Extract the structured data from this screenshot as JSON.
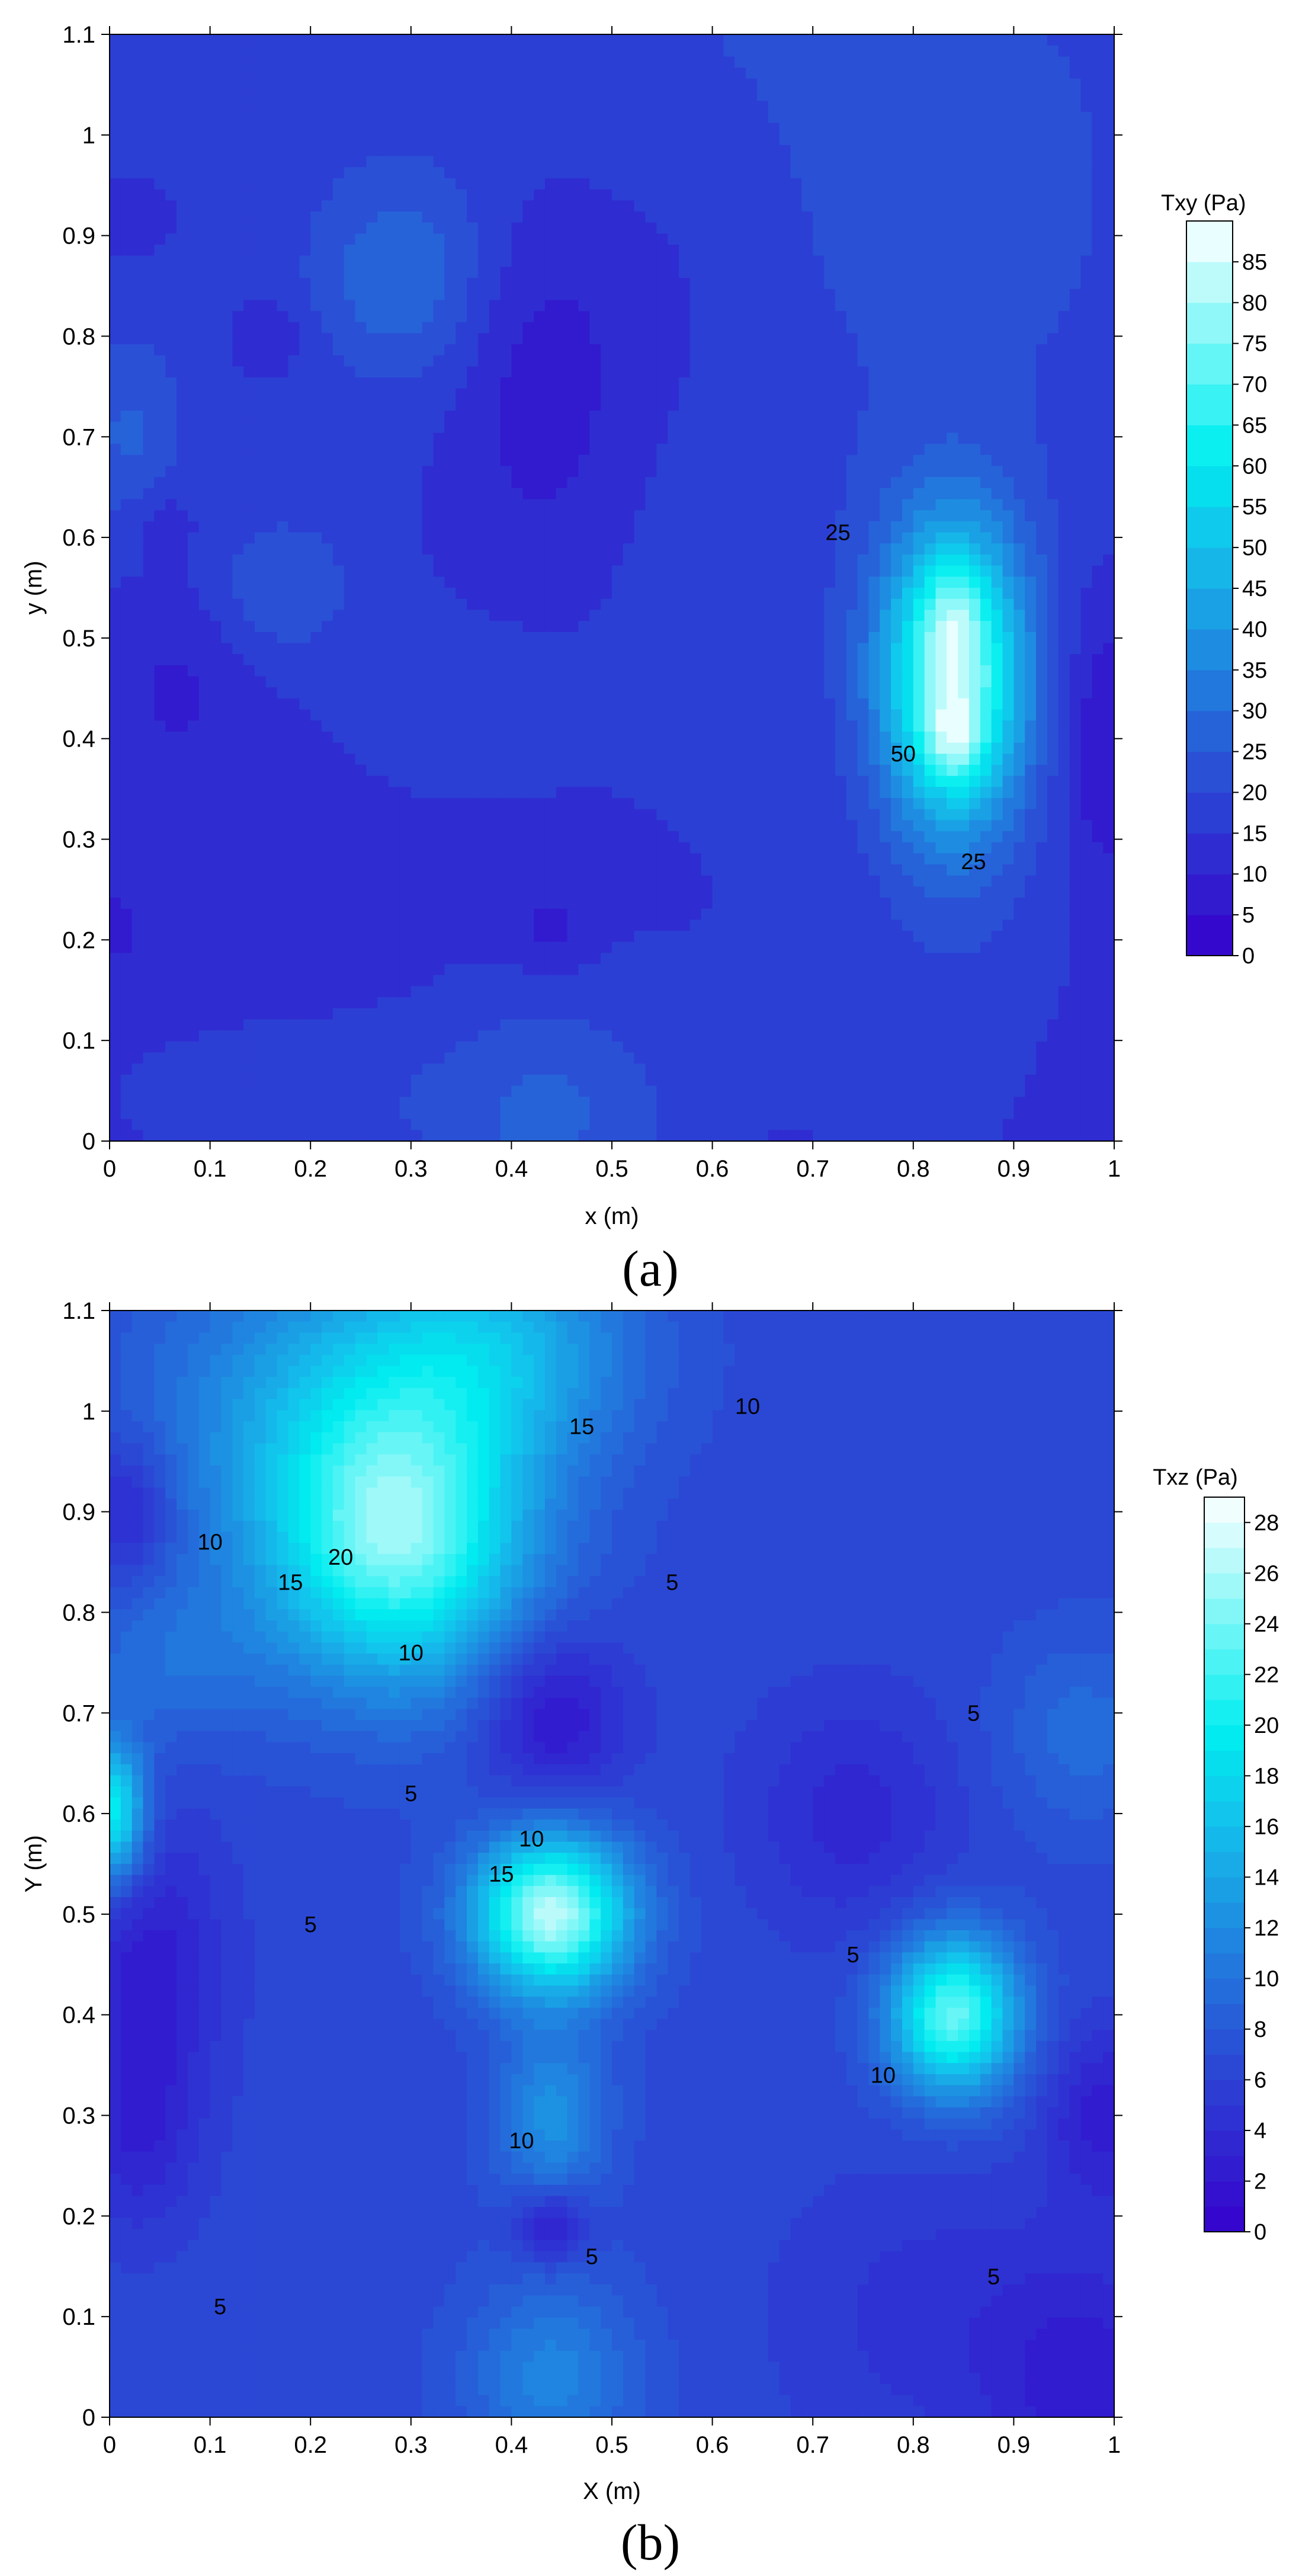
{
  "chart_data": [
    {
      "type": "contour",
      "panel_label": "(a)",
      "title": "",
      "xlabel": "x (m)",
      "ylabel": "y (m)",
      "xlim": [
        0,
        1
      ],
      "ylim": [
        0,
        1.1
      ],
      "x_ticks": [
        "0",
        "0.1",
        "0.2",
        "0.3",
        "0.4",
        "0.5",
        "0.6",
        "0.7",
        "0.8",
        "0.9",
        "1"
      ],
      "y_ticks": [
        "0",
        "0.1",
        "0.2",
        "0.3",
        "0.4",
        "0.5",
        "0.6",
        "0.7",
        "0.8",
        "0.9",
        "1",
        "1.1"
      ],
      "colorbar": {
        "title": "Txy (Pa)",
        "min": 0,
        "max": 90,
        "step": 5,
        "ticks": [
          "0",
          "5",
          "10",
          "15",
          "20",
          "25",
          "30",
          "35",
          "40",
          "45",
          "50",
          "55",
          "60",
          "65",
          "70",
          "75",
          "80",
          "85"
        ]
      },
      "contour_labels": [
        {
          "text": "25",
          "x": 0.725,
          "y": 0.605
        },
        {
          "text": "50",
          "x": 0.79,
          "y": 0.385
        },
        {
          "text": "25",
          "x": 0.86,
          "y": 0.278
        }
      ],
      "features": [
        {
          "x": 0.84,
          "y": 0.46,
          "sx": 0.052,
          "sy": 0.11,
          "amp": 64
        },
        {
          "x": 0.84,
          "y": 0.4,
          "sx": 0.02,
          "sy": 0.03,
          "amp": 18
        },
        {
          "x": 0.84,
          "y": 0.52,
          "sx": 0.02,
          "sy": 0.04,
          "amp": 12
        },
        {
          "x": 0.29,
          "y": 0.86,
          "sx": 0.06,
          "sy": 0.07,
          "amp": 13
        },
        {
          "x": 0.17,
          "y": 0.55,
          "sx": 0.05,
          "sy": 0.05,
          "amp": 10
        },
        {
          "x": 0.34,
          "y": 0.43,
          "sx": 0.08,
          "sy": 0.06,
          "amp": 4
        },
        {
          "x": 0.44,
          "y": 0.02,
          "sx": 0.09,
          "sy": 0.09,
          "amp": 12
        },
        {
          "x": 0.2,
          "y": 0.04,
          "sx": 0.14,
          "sy": 0.06,
          "amp": 5
        },
        {
          "x": 0.02,
          "y": 0.7,
          "sx": 0.04,
          "sy": 0.07,
          "amp": 10
        },
        {
          "x": 0.9,
          "y": 0.1,
          "sx": 0.16,
          "sy": 0.12,
          "amp": 5
        },
        {
          "x": 0.62,
          "y": 0.9,
          "sx": 0.14,
          "sy": 0.35,
          "amp": 4
        },
        {
          "x": 0.9,
          "y": 0.9,
          "sx": 0.12,
          "sy": 0.2,
          "amp": 4
        },
        {
          "x": 0.43,
          "y": 0.75,
          "sx": 0.06,
          "sy": 0.13,
          "amp": -9
        },
        {
          "x": 0.56,
          "y": 0.85,
          "sx": 0.08,
          "sy": 0.14,
          "amp": -5
        },
        {
          "x": 0.07,
          "y": 0.46,
          "sx": 0.05,
          "sy": 0.08,
          "amp": -5
        },
        {
          "x": 0.02,
          "y": 0.92,
          "sx": 0.03,
          "sy": 0.03,
          "amp": -5
        },
        {
          "x": 0.16,
          "y": 0.8,
          "sx": 0.025,
          "sy": 0.025,
          "amp": -6
        },
        {
          "x": 0.05,
          "y": 0.62,
          "sx": 0.025,
          "sy": 0.025,
          "amp": -5
        },
        {
          "x": 0.44,
          "y": 0.21,
          "sx": 0.03,
          "sy": 0.03,
          "amp": -6
        },
        {
          "x": 0.0,
          "y": 0.21,
          "sx": 0.03,
          "sy": 0.03,
          "amp": -5
        },
        {
          "x": 0.99,
          "y": 0.4,
          "sx": 0.03,
          "sy": 0.1,
          "amp": -10
        },
        {
          "x": 0.98,
          "y": 0.02,
          "sx": 0.06,
          "sy": 0.12,
          "amp": -6
        },
        {
          "x": 0.2,
          "y": 0.3,
          "sx": 0.22,
          "sy": 0.16,
          "amp": -1
        }
      ],
      "base": 13,
      "base_gradient": {
        "x": 0,
        "y": 4
      }
    },
    {
      "type": "contour",
      "panel_label": "(b)",
      "title": "",
      "xlabel": "X (m)",
      "ylabel": "Y (m)",
      "xlim": [
        0,
        1
      ],
      "ylim": [
        0,
        1.1
      ],
      "x_ticks": [
        "0",
        "0.1",
        "0.2",
        "0.3",
        "0.4",
        "0.5",
        "0.6",
        "0.7",
        "0.8",
        "0.9",
        "1"
      ],
      "y_ticks": [
        "0",
        "0.1",
        "0.2",
        "0.3",
        "0.4",
        "0.5",
        "0.6",
        "0.7",
        "0.8",
        "0.9",
        "1",
        "1.1"
      ],
      "colorbar": {
        "title": "Txz (Pa)",
        "min": 0,
        "max": 29,
        "step": 1,
        "ticks": [
          "0",
          "2",
          "4",
          "6",
          "8",
          "10",
          "12",
          "14",
          "16",
          "18",
          "20",
          "22",
          "24",
          "26",
          "28"
        ]
      },
      "contour_labels": [
        {
          "text": "15",
          "x": 0.47,
          "y": 0.985
        },
        {
          "text": "10",
          "x": 0.635,
          "y": 1.005
        },
        {
          "text": "10",
          "x": 0.1,
          "y": 0.87
        },
        {
          "text": "15",
          "x": 0.18,
          "y": 0.83
        },
        {
          "text": "20",
          "x": 0.23,
          "y": 0.855
        },
        {
          "text": "5",
          "x": 0.56,
          "y": 0.83
        },
        {
          "text": "10",
          "x": 0.3,
          "y": 0.76
        },
        {
          "text": "5",
          "x": 0.86,
          "y": 0.7
        },
        {
          "text": "5",
          "x": 0.3,
          "y": 0.62
        },
        {
          "text": "10",
          "x": 0.42,
          "y": 0.575
        },
        {
          "text": "15",
          "x": 0.39,
          "y": 0.54
        },
        {
          "text": "5",
          "x": 0.2,
          "y": 0.49
        },
        {
          "text": "5",
          "x": 0.74,
          "y": 0.46
        },
        {
          "text": "10",
          "x": 0.77,
          "y": 0.34
        },
        {
          "text": "10",
          "x": 0.41,
          "y": 0.275
        },
        {
          "text": "5",
          "x": 0.48,
          "y": 0.16
        },
        {
          "text": "5",
          "x": 0.11,
          "y": 0.11
        },
        {
          "text": "5",
          "x": 0.88,
          "y": 0.14
        }
      ],
      "features": [
        {
          "x": 0.29,
          "y": 0.87,
          "sx": 0.09,
          "sy": 0.1,
          "amp": 16
        },
        {
          "x": 0.38,
          "y": 1.06,
          "sx": 0.1,
          "sy": 0.08,
          "amp": 8
        },
        {
          "x": 0.2,
          "y": 1.0,
          "sx": 0.12,
          "sy": 0.12,
          "amp": 6
        },
        {
          "x": 0.44,
          "y": 0.5,
          "sx": 0.055,
          "sy": 0.055,
          "amp": 20
        },
        {
          "x": 0.44,
          "y": 0.3,
          "sx": 0.04,
          "sy": 0.06,
          "amp": 6
        },
        {
          "x": 0.84,
          "y": 0.4,
          "sx": 0.045,
          "sy": 0.055,
          "amp": 17
        },
        {
          "x": 0.0,
          "y": 0.6,
          "sx": 0.025,
          "sy": 0.05,
          "amp": 14
        },
        {
          "x": 0.06,
          "y": 0.75,
          "sx": 0.07,
          "sy": 0.06,
          "amp": 3
        },
        {
          "x": 0.44,
          "y": 0.04,
          "sx": 0.06,
          "sy": 0.07,
          "amp": 5
        },
        {
          "x": 0.97,
          "y": 0.68,
          "sx": 0.06,
          "sy": 0.07,
          "amp": 3
        },
        {
          "x": 0.44,
          "y": 0.7,
          "sx": 0.05,
          "sy": 0.06,
          "amp": -5
        },
        {
          "x": 0.44,
          "y": 0.19,
          "sx": 0.025,
          "sy": 0.025,
          "amp": -5
        },
        {
          "x": 0.74,
          "y": 0.6,
          "sx": 0.07,
          "sy": 0.08,
          "amp": -3
        },
        {
          "x": 0.04,
          "y": 0.45,
          "sx": 0.05,
          "sy": 0.1,
          "amp": -4
        },
        {
          "x": 0.02,
          "y": 0.9,
          "sx": 0.03,
          "sy": 0.05,
          "amp": -4
        },
        {
          "x": 0.03,
          "y": 0.28,
          "sx": 0.04,
          "sy": 0.07,
          "amp": -3
        },
        {
          "x": 0.99,
          "y": 0.3,
          "sx": 0.04,
          "sy": 0.06,
          "amp": -4
        },
        {
          "x": 0.98,
          "y": 0.02,
          "sx": 0.07,
          "sy": 0.1,
          "amp": -4
        },
        {
          "x": 0.82,
          "y": 0.1,
          "sx": 0.1,
          "sy": 0.1,
          "amp": -2
        }
      ],
      "base": 6.5,
      "base_gradient": {
        "x": 0,
        "y": 0
      }
    }
  ]
}
